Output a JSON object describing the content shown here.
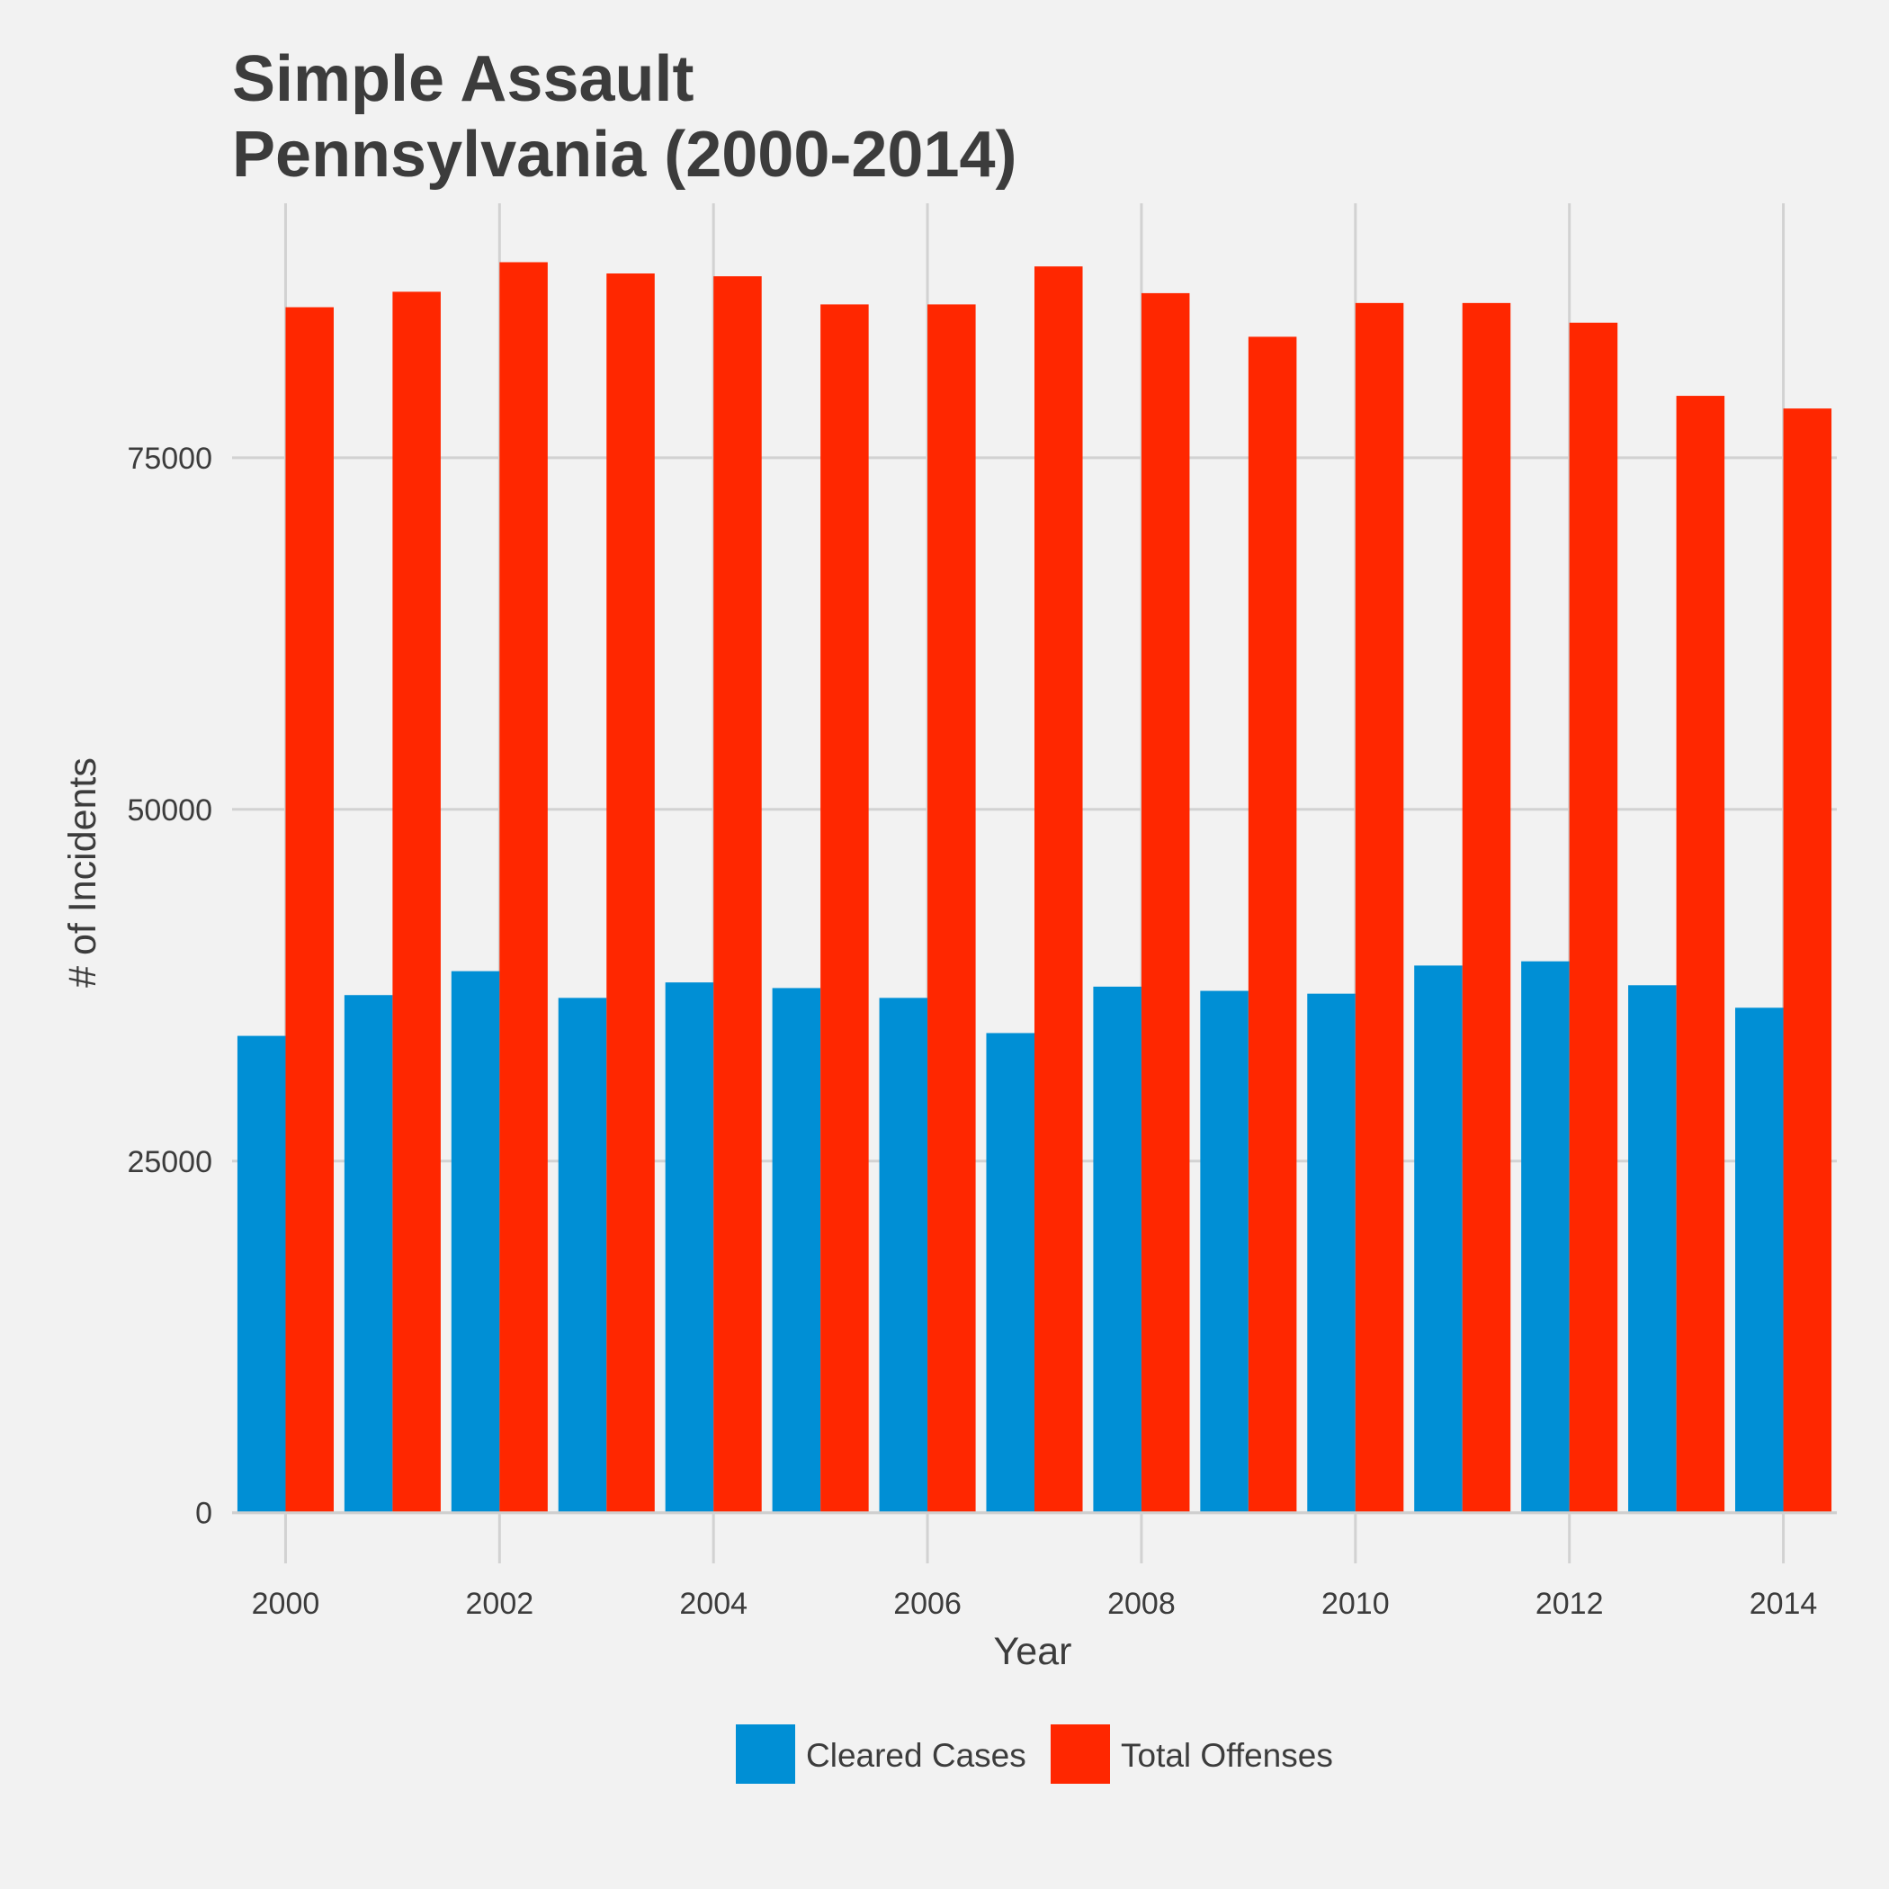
{
  "chart_data": {
    "type": "bar",
    "title": [
      "Simple Assault",
      "Pennsylvania (2000-2014)"
    ],
    "xlabel": "Year",
    "ylabel": "# of Incidents",
    "categories": [
      2000,
      2001,
      2002,
      2003,
      2004,
      2005,
      2006,
      2007,
      2008,
      2009,
      2010,
      2011,
      2012,
      2013,
      2014
    ],
    "x_tick_labels": [
      "2000",
      "2002",
      "2004",
      "2006",
      "2008",
      "2010",
      "2012",
      "2014"
    ],
    "y_ticks": [
      0,
      25000,
      50000,
      75000
    ],
    "ylim": [
      -3600,
      93600
    ],
    "grid": true,
    "legend_position": "bottom",
    "series": [
      {
        "name": "Cleared Cases",
        "color": "#008fd5",
        "values": [
          33900,
          36800,
          38500,
          36600,
          37700,
          37300,
          36600,
          34100,
          37400,
          37100,
          36900,
          38900,
          39200,
          37500,
          35900
        ]
      },
      {
        "name": "Total Offenses",
        "color": "#ff2700",
        "values": [
          85700,
          86800,
          88900,
          88100,
          87900,
          85900,
          85900,
          88600,
          86700,
          83600,
          86000,
          86000,
          84600,
          79400,
          78500
        ]
      }
    ]
  }
}
